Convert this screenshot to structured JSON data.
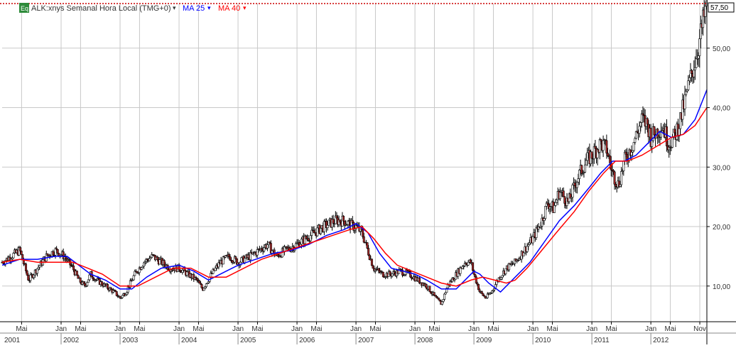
{
  "header": {
    "symbol_badge": "Eq",
    "symbol_label": "ALK:xnys Semanal Hora Local (TMG+0)",
    "ma_short_label": "MA 25",
    "ma_long_label": "MA 40",
    "dropdown_glyph": "▾"
  },
  "colors": {
    "background": "#ffffff",
    "grid": "#c8c8c8",
    "candle": "#000000",
    "candle_down_fill": "#a52a2a",
    "ma_short": "#0000ff",
    "ma_long": "#ff0000",
    "last_price_line": "#cc0000",
    "badge": "#2e8b3a"
  },
  "chart_data": {
    "type": "candlestick",
    "title": "ALK:xnys Semanal Hora Local (TMG+0)",
    "y_axis_position": "right",
    "ylim": [
      4,
      57.5
    ],
    "yticks": [
      10,
      20,
      30,
      40,
      50
    ],
    "ytick_labels": [
      "10,00",
      "20,00",
      "30,00",
      "40,00",
      "50,00"
    ],
    "last_price": 57.5,
    "last_price_label": "57,50",
    "xlim": [
      2001.0,
      2012.95
    ],
    "month_ticks": [
      {
        "x": 2001.33,
        "label": "Mai"
      },
      {
        "x": 2002.0,
        "label": "Jan"
      },
      {
        "x": 2002.33,
        "label": "Mai"
      },
      {
        "x": 2003.0,
        "label": "Jan"
      },
      {
        "x": 2003.33,
        "label": "Mai"
      },
      {
        "x": 2004.0,
        "label": "Jan"
      },
      {
        "x": 2004.33,
        "label": "Mai"
      },
      {
        "x": 2005.0,
        "label": "Jan"
      },
      {
        "x": 2005.33,
        "label": "Mai"
      },
      {
        "x": 2006.0,
        "label": "Jan"
      },
      {
        "x": 2006.33,
        "label": "Mai"
      },
      {
        "x": 2007.0,
        "label": "Jan"
      },
      {
        "x": 2007.33,
        "label": "Mai"
      },
      {
        "x": 2008.0,
        "label": "Jan"
      },
      {
        "x": 2008.33,
        "label": "Mai"
      },
      {
        "x": 2009.0,
        "label": "Jan"
      },
      {
        "x": 2009.33,
        "label": "Mai"
      },
      {
        "x": 2010.0,
        "label": "Jan"
      },
      {
        "x": 2010.33,
        "label": "Mai"
      },
      {
        "x": 2011.0,
        "label": "Jan"
      },
      {
        "x": 2011.33,
        "label": "Mai"
      },
      {
        "x": 2012.0,
        "label": "Jan"
      },
      {
        "x": 2012.33,
        "label": "Mai"
      },
      {
        "x": 2012.83,
        "label": "Nov"
      }
    ],
    "years": [
      "2001",
      "2002",
      "2003",
      "2004",
      "2005",
      "2006",
      "2007",
      "2008",
      "2009",
      "2010",
      "2011",
      "2012"
    ],
    "price_close": [
      [
        2001.0,
        14
      ],
      [
        2001.15,
        15
      ],
      [
        2001.3,
        16
      ],
      [
        2001.45,
        11
      ],
      [
        2001.6,
        13
      ],
      [
        2001.75,
        15
      ],
      [
        2001.9,
        16
      ],
      [
        2002.05,
        15
      ],
      [
        2002.2,
        13
      ],
      [
        2002.3,
        11
      ],
      [
        2002.4,
        10
      ],
      [
        2002.5,
        12
      ],
      [
        2002.6,
        11
      ],
      [
        2002.75,
        10
      ],
      [
        2002.9,
        9
      ],
      [
        2003.0,
        8
      ],
      [
        2003.1,
        9
      ],
      [
        2003.25,
        12
      ],
      [
        2003.4,
        14
      ],
      [
        2003.55,
        15
      ],
      [
        2003.7,
        14
      ],
      [
        2003.85,
        13
      ],
      [
        2004.0,
        13
      ],
      [
        2004.15,
        12
      ],
      [
        2004.3,
        11
      ],
      [
        2004.4,
        9.5
      ],
      [
        2004.55,
        12
      ],
      [
        2004.7,
        14
      ],
      [
        2004.85,
        15
      ],
      [
        2005.0,
        14
      ],
      [
        2005.2,
        15
      ],
      [
        2005.35,
        16
      ],
      [
        2005.5,
        17
      ],
      [
        2005.65,
        15
      ],
      [
        2005.8,
        16
      ],
      [
        2006.0,
        17
      ],
      [
        2006.15,
        18
      ],
      [
        2006.3,
        19
      ],
      [
        2006.45,
        20
      ],
      [
        2006.55,
        20.5
      ],
      [
        2006.65,
        21
      ],
      [
        2006.8,
        21
      ],
      [
        2006.95,
        20
      ],
      [
        2007.0,
        20
      ],
      [
        2007.1,
        19
      ],
      [
        2007.2,
        16
      ],
      [
        2007.3,
        13
      ],
      [
        2007.45,
        12
      ],
      [
        2007.6,
        12
      ],
      [
        2007.75,
        12.5
      ],
      [
        2007.9,
        12
      ],
      [
        2008.05,
        11
      ],
      [
        2008.2,
        10
      ],
      [
        2008.35,
        8
      ],
      [
        2008.45,
        7
      ],
      [
        2008.55,
        10
      ],
      [
        2008.7,
        12
      ],
      [
        2008.85,
        14
      ],
      [
        2008.95,
        14
      ],
      [
        2009.0,
        12
      ],
      [
        2009.1,
        9
      ],
      [
        2009.2,
        8
      ],
      [
        2009.3,
        9
      ],
      [
        2009.4,
        11
      ],
      [
        2009.55,
        13
      ],
      [
        2009.7,
        14
      ],
      [
        2009.85,
        16
      ],
      [
        2010.0,
        18
      ],
      [
        2010.15,
        21
      ],
      [
        2010.25,
        24
      ],
      [
        2010.35,
        23
      ],
      [
        2010.45,
        26
      ],
      [
        2010.6,
        24
      ],
      [
        2010.75,
        28
      ],
      [
        2010.9,
        31
      ],
      [
        2011.0,
        32
      ],
      [
        2011.15,
        34
      ],
      [
        2011.25,
        33
      ],
      [
        2011.35,
        29
      ],
      [
        2011.45,
        27
      ],
      [
        2011.55,
        31
      ],
      [
        2011.7,
        34
      ],
      [
        2011.85,
        38
      ],
      [
        2011.95,
        37
      ],
      [
        2012.0,
        35
      ],
      [
        2012.1,
        36
      ],
      [
        2012.2,
        37
      ],
      [
        2012.3,
        34
      ],
      [
        2012.4,
        35
      ],
      [
        2012.5,
        38
      ],
      [
        2012.6,
        42
      ],
      [
        2012.7,
        46
      ],
      [
        2012.8,
        50
      ],
      [
        2012.88,
        54
      ],
      [
        2012.95,
        57.5
      ]
    ],
    "series": [
      {
        "name": "MA 25",
        "color": "#0000ff",
        "points": [
          [
            2001.0,
            13.5
          ],
          [
            2001.3,
            14.5
          ],
          [
            2001.6,
            14.5
          ],
          [
            2001.9,
            15
          ],
          [
            2002.1,
            15
          ],
          [
            2002.3,
            13.5
          ],
          [
            2002.5,
            12
          ],
          [
            2002.75,
            11
          ],
          [
            2003.0,
            9.5
          ],
          [
            2003.2,
            9.5
          ],
          [
            2003.45,
            11.5
          ],
          [
            2003.7,
            13
          ],
          [
            2004.0,
            13.5
          ],
          [
            2004.25,
            12.5
          ],
          [
            2004.5,
            11
          ],
          [
            2004.8,
            12.5
          ],
          [
            2005.0,
            13.5
          ],
          [
            2005.3,
            14.5
          ],
          [
            2005.6,
            15.5
          ],
          [
            2005.9,
            16
          ],
          [
            2006.2,
            17
          ],
          [
            2006.5,
            18.5
          ],
          [
            2006.8,
            19.5
          ],
          [
            2007.0,
            20.5
          ],
          [
            2007.2,
            19
          ],
          [
            2007.4,
            15.5
          ],
          [
            2007.6,
            13
          ],
          [
            2007.8,
            12.5
          ],
          [
            2008.0,
            12
          ],
          [
            2008.2,
            11
          ],
          [
            2008.45,
            9.5
          ],
          [
            2008.7,
            9.5
          ],
          [
            2008.9,
            11.5
          ],
          [
            2009.0,
            12.5
          ],
          [
            2009.1,
            12
          ],
          [
            2009.25,
            10.5
          ],
          [
            2009.45,
            9
          ],
          [
            2009.7,
            11.5
          ],
          [
            2009.95,
            14
          ],
          [
            2010.2,
            17.5
          ],
          [
            2010.45,
            21
          ],
          [
            2010.7,
            23.5
          ],
          [
            2010.95,
            26.5
          ],
          [
            2011.15,
            29
          ],
          [
            2011.35,
            31
          ],
          [
            2011.55,
            31
          ],
          [
            2011.75,
            32
          ],
          [
            2011.95,
            34
          ],
          [
            2012.15,
            36
          ],
          [
            2012.35,
            35
          ],
          [
            2012.55,
            35.5
          ],
          [
            2012.75,
            38
          ],
          [
            2012.95,
            43
          ]
        ]
      },
      {
        "name": "MA 40",
        "color": "#ff0000",
        "points": [
          [
            2001.0,
            14
          ],
          [
            2001.3,
            14.5
          ],
          [
            2001.6,
            14
          ],
          [
            2001.9,
            14
          ],
          [
            2002.2,
            14
          ],
          [
            2002.45,
            13
          ],
          [
            2002.7,
            12
          ],
          [
            2003.0,
            10
          ],
          [
            2003.3,
            10
          ],
          [
            2003.6,
            11.5
          ],
          [
            2003.9,
            13
          ],
          [
            2004.2,
            13
          ],
          [
            2004.5,
            11.5
          ],
          [
            2004.8,
            11.5
          ],
          [
            2005.1,
            13
          ],
          [
            2005.4,
            14.5
          ],
          [
            2005.7,
            15.5
          ],
          [
            2006.0,
            16.5
          ],
          [
            2006.3,
            17.5
          ],
          [
            2006.6,
            18.5
          ],
          [
            2006.9,
            19.5
          ],
          [
            2007.1,
            20
          ],
          [
            2007.3,
            18
          ],
          [
            2007.5,
            15.5
          ],
          [
            2007.7,
            13.5
          ],
          [
            2007.95,
            12.5
          ],
          [
            2008.2,
            11.5
          ],
          [
            2008.45,
            10.5
          ],
          [
            2008.7,
            10
          ],
          [
            2008.95,
            11
          ],
          [
            2009.15,
            11.5
          ],
          [
            2009.35,
            11
          ],
          [
            2009.55,
            10.5
          ],
          [
            2009.7,
            11
          ],
          [
            2009.9,
            13
          ],
          [
            2010.15,
            16
          ],
          [
            2010.4,
            19
          ],
          [
            2010.7,
            22.5
          ],
          [
            2010.95,
            26
          ],
          [
            2011.2,
            29
          ],
          [
            2011.4,
            31
          ],
          [
            2011.6,
            31
          ],
          [
            2011.85,
            32
          ],
          [
            2012.1,
            33.5
          ],
          [
            2012.35,
            35
          ],
          [
            2012.55,
            35.5
          ],
          [
            2012.75,
            37
          ],
          [
            2012.95,
            40
          ]
        ]
      }
    ]
  }
}
